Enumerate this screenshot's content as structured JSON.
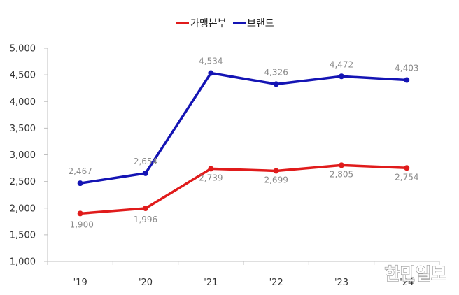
{
  "chart_data": {
    "type": "line",
    "categories": [
      "'19",
      "'20",
      "'21",
      "'22",
      "'23",
      "'24"
    ],
    "series": [
      {
        "name": "가맹본부",
        "color": "#e01b1b",
        "values": [
          1900,
          1996,
          2739,
          2699,
          2805,
          2754
        ],
        "labels": [
          "1,900",
          "1,996",
          "2,739",
          "2,699",
          "2,805",
          "2,754"
        ]
      },
      {
        "name": "브랜드",
        "color": "#1414b4",
        "values": [
          2467,
          2654,
          4534,
          4326,
          4472,
          4403
        ],
        "labels": [
          "2,467",
          "2,654",
          "4,534",
          "4,326",
          "4,472",
          "4,403"
        ]
      }
    ],
    "title": "",
    "xlabel": "",
    "ylabel": "",
    "ylim": [
      1000,
      5000
    ],
    "yticks": [
      1000,
      1500,
      2000,
      2500,
      3000,
      3500,
      4000,
      4500,
      5000
    ],
    "ytick_labels": [
      "1,000",
      "1,500",
      "2,000",
      "2,500",
      "3,000",
      "3,500",
      "4,000",
      "4,500",
      "5,000"
    ],
    "grid": false,
    "legend_position": "top-center"
  },
  "watermark": "한민일보"
}
